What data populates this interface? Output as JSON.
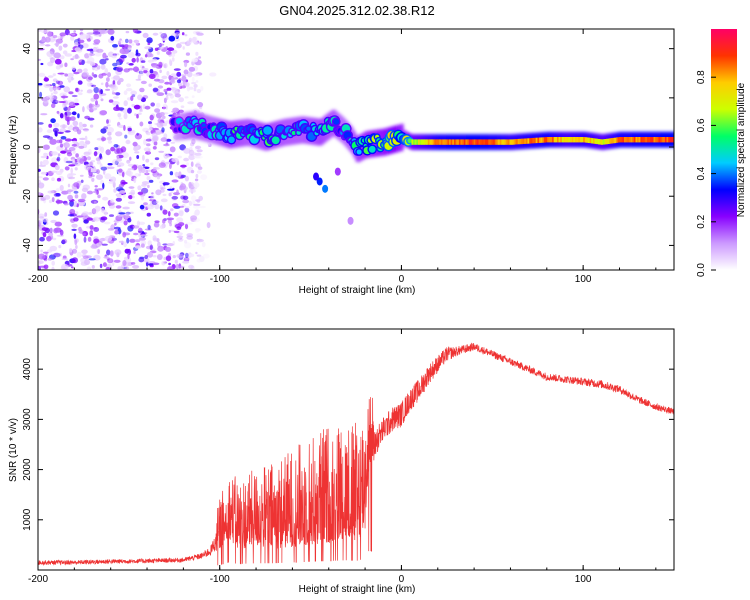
{
  "chart_data": [
    {
      "type": "heatmap",
      "title": "GN04.2025.312.02.38.R12",
      "xlabel": "Height of straight line (km)",
      "ylabel": "Frequency (Hz)",
      "xlim": [
        -200,
        150
      ],
      "ylim": [
        -50,
        48
      ],
      "xticks": [
        -200,
        -100,
        0,
        100
      ],
      "yticks": [
        -40,
        -20,
        0,
        20,
        40
      ],
      "colorbar": {
        "label": "Normalized spectral amplitude",
        "range": [
          0,
          1
        ],
        "ticks": [
          0.0,
          0.2,
          0.4,
          0.6,
          0.8
        ],
        "tick_labels": [
          "0.0",
          "0.2",
          "0.4",
          "0.6",
          "0.8"
        ],
        "colors": [
          "#ffffff",
          "#cc99ff",
          "#8800ff",
          "#0000ff",
          "#00ccff",
          "#00ff66",
          "#ccff00",
          "#ffcc00",
          "#ff3300",
          "#ff0066"
        ]
      },
      "ridge": {
        "x": [
          -125,
          -115,
          -105,
          -95,
          -85,
          -75,
          -65,
          -55,
          -45,
          -38,
          -33,
          -28,
          -25,
          -20,
          -10,
          -5,
          0,
          5,
          20,
          40,
          60,
          80,
          90,
          100,
          110,
          120,
          150
        ],
        "y": [
          8,
          9,
          7,
          5,
          6,
          4,
          6,
          7,
          6,
          10,
          7,
          3,
          -1,
          1,
          2,
          3,
          4,
          2,
          2,
          2,
          2,
          3,
          3,
          3,
          2,
          3,
          3
        ],
        "amplitude": [
          0.3,
          0.45,
          0.4,
          0.5,
          0.45,
          0.5,
          0.45,
          0.45,
          0.5,
          0.45,
          0.4,
          0.45,
          0.5,
          0.55,
          0.6,
          0.65,
          0.55,
          0.7,
          0.9,
          0.95,
          0.85,
          0.9,
          0.8,
          0.85,
          0.75,
          0.9,
          0.95
        ]
      },
      "noise_region": {
        "x_range": [
          -200,
          -110
        ],
        "y_range": [
          -50,
          48
        ],
        "amplitude_max": 0.3
      }
    },
    {
      "type": "line",
      "xlabel": "Height of straight line (km)",
      "ylabel": "SNR (10 * v/v)",
      "xlim": [
        -200,
        150
      ],
      "ylim": [
        0,
        4800
      ],
      "xticks": [
        -200,
        -100,
        0,
        100
      ],
      "yticks": [
        1000,
        2000,
        3000,
        4000
      ],
      "color": "#ee3333",
      "series": [
        {
          "name": "SNR",
          "x": [
            -200,
            -180,
            -160,
            -140,
            -120,
            -110,
            -105,
            -100,
            -95,
            -90,
            -80,
            -70,
            -60,
            -50,
            -40,
            -30,
            -25,
            -20,
            -18,
            -15,
            -10,
            -5,
            0,
            5,
            10,
            15,
            20,
            25,
            30,
            40,
            50,
            60,
            70,
            80,
            90,
            100,
            110,
            120,
            130,
            140,
            150
          ],
          "y": [
            150,
            150,
            170,
            180,
            200,
            280,
            380,
            700,
            1000,
            800,
            900,
            900,
            1000,
            1100,
            1200,
            1300,
            1200,
            1500,
            2500,
            2500,
            2800,
            3000,
            3100,
            3400,
            3600,
            3900,
            4100,
            4300,
            4350,
            4450,
            4300,
            4150,
            4000,
            3850,
            3800,
            3750,
            3700,
            3600,
            3400,
            3250,
            3150
          ],
          "spread": [
            90,
            90,
            90,
            90,
            90,
            120,
            200,
            450,
            600,
            650,
            700,
            800,
            900,
            1000,
            1100,
            1100,
            1100,
            1200,
            700,
            600,
            500,
            500,
            500,
            450,
            450,
            400,
            350,
            300,
            200,
            150,
            150,
            150,
            150,
            150,
            150,
            150,
            170,
            150,
            150,
            130,
            130
          ]
        }
      ]
    }
  ]
}
